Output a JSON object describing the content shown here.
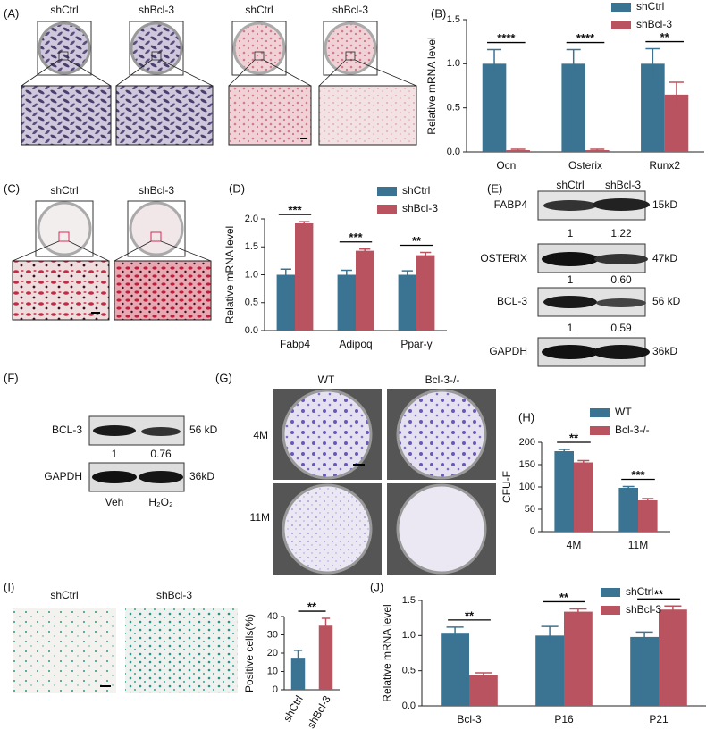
{
  "panel_labels": [
    "(A)",
    "(B)",
    "(C)",
    "(D)",
    "(E)",
    "(F)",
    "(G)",
    "(H)",
    "(I)",
    "(J)"
  ],
  "panel_a": {
    "labels": [
      "shCtrl",
      "shBcl-3",
      "shCtrl",
      "shBcl-3"
    ]
  },
  "panel_c": {
    "labels": [
      "shCtrl",
      "shBcl-3"
    ]
  },
  "panel_e": {
    "columns": [
      "shCtrl",
      "shBcl-3"
    ],
    "rows": [
      {
        "protein": "FABP4",
        "size": "15kD",
        "ratios": [
          "1",
          "1.22"
        ]
      },
      {
        "protein": "OSTERIX",
        "size": "47kD",
        "ratios": [
          "1",
          "0.60"
        ]
      },
      {
        "protein": "BCL-3",
        "size": "56 kD",
        "ratios": [
          "1",
          "0.59"
        ]
      },
      {
        "protein": "GAPDH",
        "size": "36kD"
      }
    ]
  },
  "panel_f": {
    "columns": [
      "Veh",
      "H₂O₂"
    ],
    "rows": [
      {
        "protein": "BCL-3",
        "size": "56 kD",
        "ratios": [
          "1",
          "0.76"
        ]
      },
      {
        "protein": "GAPDH",
        "size": "36kD"
      }
    ]
  },
  "panel_g": {
    "columns": [
      "WT",
      "Bcl-3-/-"
    ],
    "rows": [
      "4M",
      "11M"
    ]
  },
  "panel_i": {
    "labels": [
      "shCtrl",
      "shBcl-3"
    ]
  },
  "chart_data": [
    {
      "type": "bar",
      "ylabel": "Relative  mRNA level",
      "categories": [
        "Ocn",
        "Osterix",
        "Runx2"
      ],
      "series": [
        {
          "name": "shCtrl",
          "color": "#3b7393",
          "values": [
            1.0,
            1.0,
            1.0
          ],
          "errors": [
            0.16,
            0.16,
            0.17
          ]
        },
        {
          "name": "shBcl-3",
          "color": "#b8535f",
          "values": [
            0.02,
            0.02,
            0.65
          ],
          "errors": [
            0.01,
            0.01,
            0.14
          ]
        }
      ],
      "ylim": [
        0,
        1.5
      ],
      "yticks": [
        {
          "value": 0,
          "label": "0.0"
        },
        {
          "value": 0.5,
          "label": "0.5"
        },
        {
          "value": 1,
          "label": "1.0"
        },
        {
          "value": 1.5,
          "label": "1.5"
        }
      ],
      "significance": [
        "****",
        "****",
        "**"
      ]
    },
    {
      "type": "bar",
      "ylabel": "Relative  mRNA level",
      "categories": [
        "Fabp4",
        "Adipoq",
        "Ppar-γ"
      ],
      "series": [
        {
          "name": "shCtrl",
          "color": "#3b7393",
          "values": [
            1.0,
            1.0,
            1.0
          ],
          "errors": [
            0.1,
            0.08,
            0.07
          ]
        },
        {
          "name": "shBcl-3",
          "color": "#b8535f",
          "values": [
            1.92,
            1.43,
            1.35
          ],
          "errors": [
            0.03,
            0.03,
            0.05
          ]
        }
      ],
      "ylim": [
        0,
        2
      ],
      "yticks": [
        {
          "value": 0,
          "label": "0.0"
        },
        {
          "value": 0.5,
          "label": "0.5"
        },
        {
          "value": 1,
          "label": "1.0"
        },
        {
          "value": 1.5,
          "label": "1.5"
        },
        {
          "value": 2,
          "label": "2.0"
        }
      ],
      "significance": [
        "***",
        "***",
        "**"
      ]
    },
    {
      "type": "bar",
      "ylabel": "CFU-F",
      "categories": [
        "4M",
        "11M"
      ],
      "series": [
        {
          "name": "WT",
          "color": "#3b7393",
          "values": [
            180,
            98
          ],
          "errors": [
            4,
            3
          ]
        },
        {
          "name": "Bcl-3-/-",
          "color": "#b8535f",
          "values": [
            155,
            70
          ],
          "errors": [
            4,
            4
          ]
        }
      ],
      "ylim": [
        0,
        200
      ],
      "yticks": [
        0,
        50,
        100,
        150,
        200
      ],
      "significance": [
        "**",
        "***"
      ]
    },
    {
      "type": "bar",
      "ylabel": "Positive cells(%)",
      "categories": [
        "shCtrl",
        "shBcl-3"
      ],
      "colors": [
        "#3b7393",
        "#b8535f"
      ],
      "series": [
        {
          "values": [
            17.5,
            35
          ],
          "errors": [
            4,
            4
          ]
        }
      ],
      "ylim": [
        0,
        40
      ],
      "yticks": [
        0,
        10,
        20,
        30,
        40
      ],
      "significance": [
        "**"
      ]
    },
    {
      "type": "bar",
      "ylabel": "Relative  mRNA level",
      "categories": [
        "Bcl-3",
        "P16",
        "P21"
      ],
      "series": [
        {
          "name": "shCtrl",
          "color": "#3b7393",
          "values": [
            1.04,
            1.0,
            0.98
          ],
          "errors": [
            0.08,
            0.13,
            0.07
          ]
        },
        {
          "name": "shBcl-3",
          "color": "#b8535f",
          "values": [
            0.44,
            1.34,
            1.37
          ],
          "errors": [
            0.03,
            0.04,
            0.05
          ]
        }
      ],
      "ylim": [
        0,
        1.5
      ],
      "yticks": [
        {
          "value": 0,
          "label": "0.0"
        },
        {
          "value": 0.5,
          "label": "0.5"
        },
        {
          "value": 1,
          "label": "1.0"
        },
        {
          "value": 1.5,
          "label": "1.5"
        }
      ],
      "significance": [
        "**",
        "**",
        "**"
      ]
    }
  ]
}
